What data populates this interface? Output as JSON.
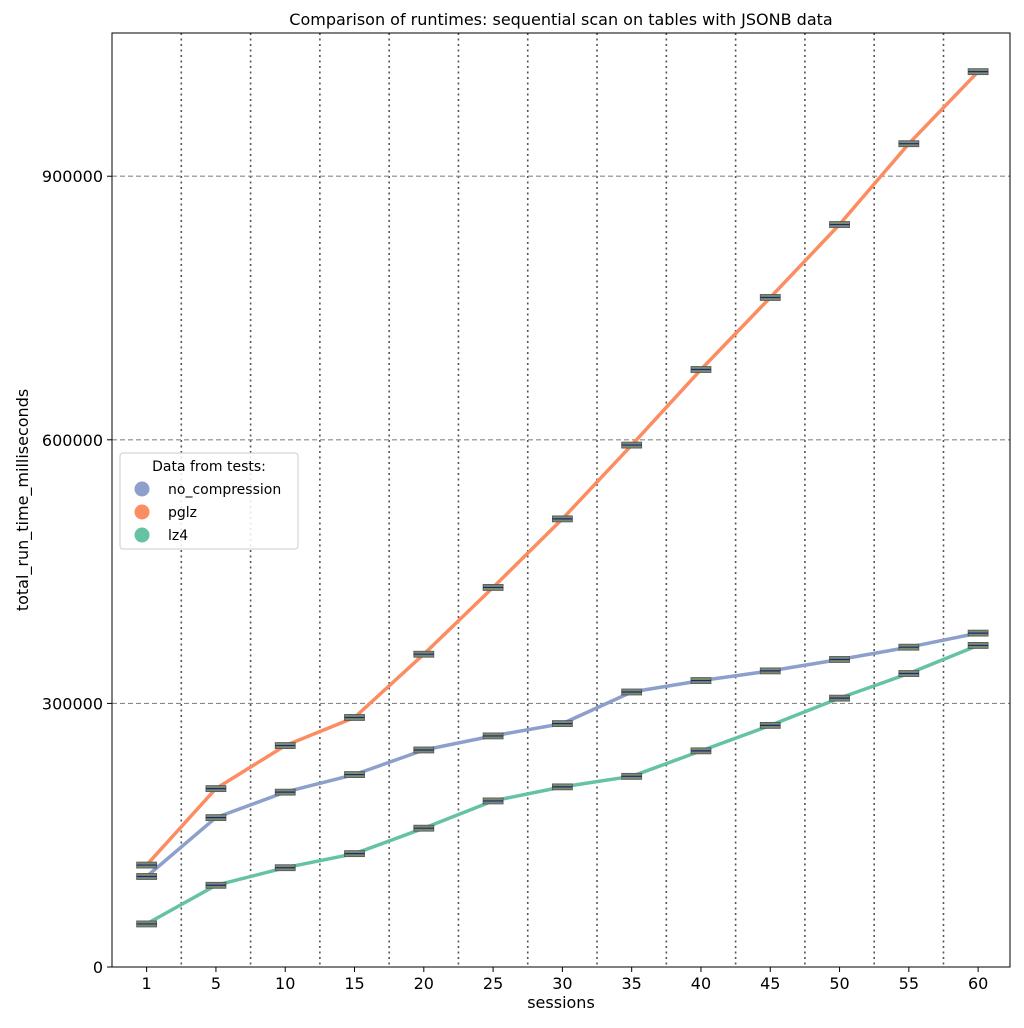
{
  "chart_data": {
    "type": "line",
    "title": "Comparison of runtimes: sequential scan on tables with JSONB data",
    "xlabel": "sessions",
    "ylabel": "total_run_time_milliseconds",
    "categories": [
      "1",
      "5",
      "10",
      "15",
      "20",
      "25",
      "30",
      "35",
      "40",
      "45",
      "50",
      "55",
      "60"
    ],
    "ylim": [
      0,
      1063000
    ],
    "yticks": [
      0,
      300000,
      600000,
      900000
    ],
    "grid": true,
    "legend": {
      "title": "Data from tests:",
      "placement": "center-left"
    },
    "series": [
      {
        "name": "no_compression",
        "color": "#8da0cb",
        "values": [
          103000,
          170000,
          199000,
          219000,
          247000,
          263000,
          277000,
          313000,
          326000,
          337000,
          350000,
          364000,
          380000
        ]
      },
      {
        "name": "pglz",
        "color": "#fc8d62",
        "values": [
          116000,
          203000,
          252000,
          284000,
          356000,
          432000,
          510000,
          594000,
          680000,
          762000,
          845000,
          937000,
          1019000
        ]
      },
      {
        "name": "lz4",
        "color": "#66c2a5",
        "values": [
          49000,
          93000,
          113000,
          129000,
          158000,
          189000,
          205000,
          217000,
          246000,
          275000,
          306000,
          334000,
          366000
        ]
      }
    ]
  }
}
